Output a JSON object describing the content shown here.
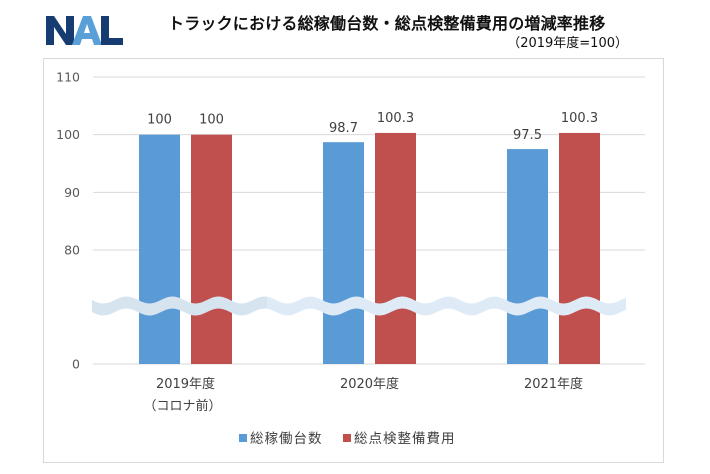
{
  "logo": {
    "text": "NAL"
  },
  "header": {
    "title": "トラックにおける総稼働台数・総点検整備費用の増減率推移",
    "subtitle": "（2019年度=100）"
  },
  "colors": {
    "series_blue": "#5b9bd5",
    "series_red": "#c0504d",
    "logo_dark": "#163c72",
    "logo_light": "#5aa0d8",
    "grid": "#d9d9d9",
    "break_band": "#deebf7"
  },
  "chart_data": {
    "type": "bar",
    "title": "トラックにおける総稼働台数・総点検整備費用の増減率推移",
    "subtitle": "（2019年度=100）",
    "categories": [
      {
        "line1": "2019年度",
        "line2": "（コロナ前）"
      },
      {
        "line1": "2020年度",
        "line2": ""
      },
      {
        "line1": "2021年度",
        "line2": ""
      }
    ],
    "series": [
      {
        "name": "総稼働台数",
        "color": "#5b9bd5",
        "values": [
          100,
          98.7,
          97.5
        ],
        "labels": [
          "100",
          "98.7",
          "97.5"
        ]
      },
      {
        "name": "総点検整備費用",
        "color": "#c0504d",
        "values": [
          100,
          100.3,
          100.3
        ],
        "labels": [
          "100",
          "100.3",
          "100.3"
        ]
      }
    ],
    "y_ticks": [
      "110",
      "100",
      "90",
      "80",
      "0"
    ],
    "y_tick_values": [
      110,
      100,
      90,
      80,
      0
    ],
    "ylim_upper": [
      80,
      110
    ],
    "axis_break": "between 0 and 80",
    "grid": true,
    "legend_position": "bottom",
    "xlabel": "",
    "ylabel": ""
  }
}
